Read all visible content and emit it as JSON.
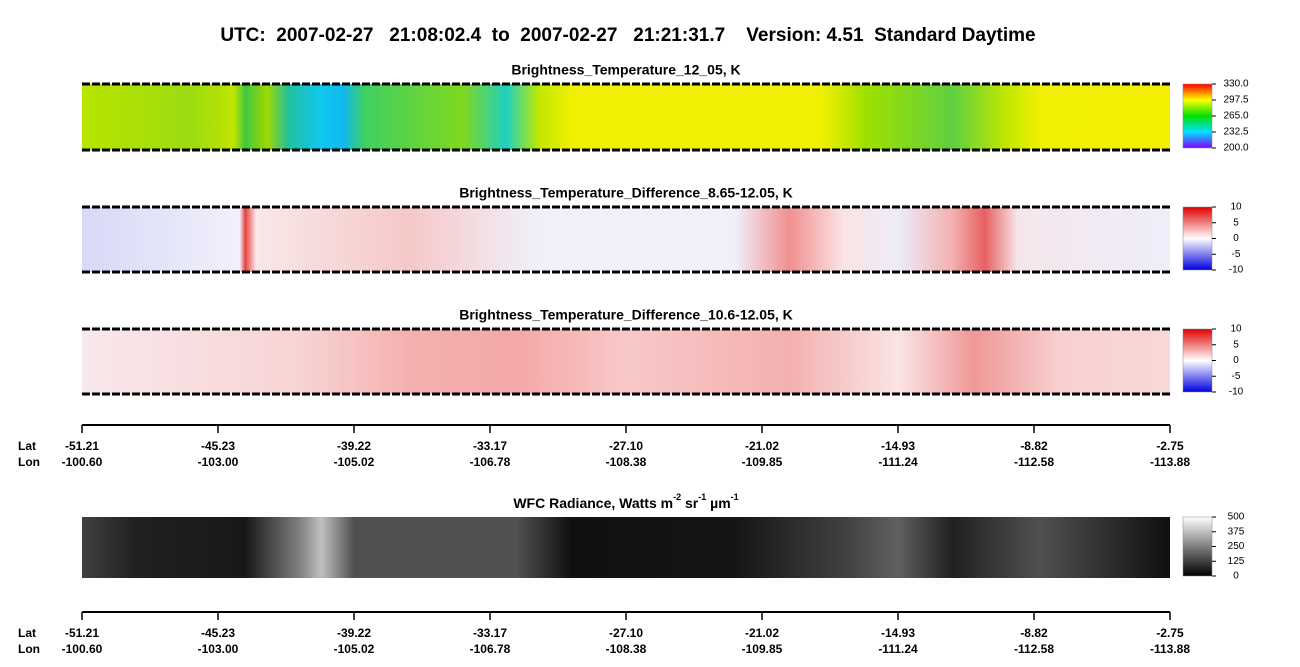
{
  "header": {
    "title": "UTC:  2007-02-27   21:08:02.4  to  2007-02-27   21:21:31.7    Version: 4.51  Standard Daytime"
  },
  "panels": [
    {
      "title": "Brightness_Temperature_12_05, K",
      "colorbar": [
        "330.0",
        "297.5",
        "265.0",
        "232.5",
        "200.0"
      ]
    },
    {
      "title": "Brightness_Temperature_Difference_8.65-12.05, K",
      "colorbar": [
        "10",
        "5",
        "0",
        "-5",
        "-10"
      ]
    },
    {
      "title": "Brightness_Temperature_Difference_10.6-12.05, K",
      "colorbar": [
        "10",
        "5",
        "0",
        "-5",
        "-10"
      ]
    },
    {
      "title_parts": [
        "WFC Radiance, Watts m",
        "-2",
        " sr",
        "-1",
        " µm",
        "-1"
      ],
      "colorbar": [
        "500",
        "375",
        "250",
        "125",
        "0"
      ]
    }
  ],
  "axes": [
    {
      "lat_label": "Lat",
      "lon_label": "Lon",
      "lat": [
        "-51.21",
        "-45.23",
        "-39.22",
        "-33.17",
        "-27.10",
        "-21.02",
        "-14.93",
        "-8.82",
        "-2.75"
      ],
      "lon": [
        "-100.60",
        "-103.00",
        "-105.02",
        "-106.78",
        "-108.38",
        "-109.85",
        "-111.24",
        "-112.58",
        "-113.88"
      ]
    },
    {
      "lat_label": "Lat",
      "lon_label": "Lon",
      "lat": [
        "-51.21",
        "-45.23",
        "-39.22",
        "-33.17",
        "-27.10",
        "-21.02",
        "-14.93",
        "-8.82",
        "-2.75"
      ],
      "lon": [
        "-100.60",
        "-103.00",
        "-105.02",
        "-106.78",
        "-108.38",
        "-109.85",
        "-111.24",
        "-112.58",
        "-113.88"
      ]
    }
  ]
}
